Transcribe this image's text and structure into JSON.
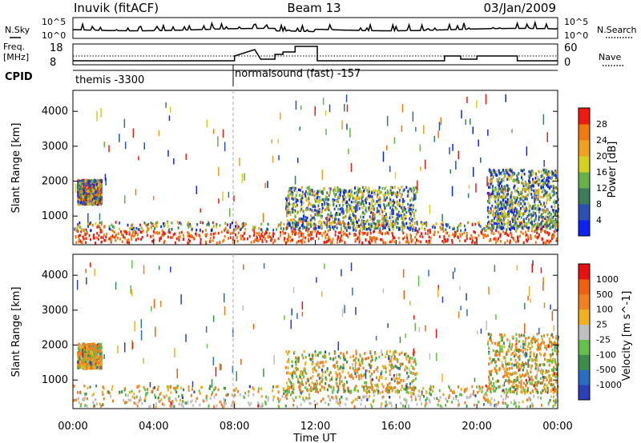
{
  "header": {
    "station": "Inuvik (fitACF)",
    "beam": "Beam 13",
    "date": "03/Jan/2009"
  },
  "top_panel": {
    "left_label": "N.Sky",
    "right_label": "N.Search",
    "left_ticks": [
      "10^5",
      "10^0"
    ],
    "right_ticks": [
      "10^5",
      "10^0"
    ]
  },
  "freq_panel": {
    "left_label_1": "Freq.",
    "left_label_2": "[MHz]",
    "left_ticks": [
      "18",
      "8"
    ],
    "right_ticks": [
      "60",
      "0"
    ],
    "right_label": "Nave",
    "cpid_label": "CPID",
    "cpid_modes": [
      "themis -3300",
      "normalsound (fast) -157"
    ]
  },
  "chart_data": [
    {
      "type": "heatmap",
      "panel": "power",
      "ylabel": "Slant Range [km]",
      "yticks": [
        1000,
        2000,
        3000,
        4000
      ],
      "ylim": [
        180,
        4600
      ],
      "colorbar_label": "Power [dB]",
      "colorbar_ticks": [
        "28",
        "24",
        "20",
        "16",
        "12",
        "8",
        "4"
      ],
      "colors": [
        "#0a23f0",
        "#2a4fb5",
        "#3a7d5a",
        "#66b24a",
        "#d6d020",
        "#f0a020",
        "#f07a10",
        "#f01a10"
      ],
      "echo_regions_hours_km": [
        {
          "t0": 0.0,
          "t1": 24.0,
          "r0": 200,
          "r1": 800,
          "level": "high"
        },
        {
          "t0": 0.2,
          "t1": 1.4,
          "r0": 1300,
          "r1": 2000,
          "level": "high"
        },
        {
          "t0": 10.5,
          "t1": 17.0,
          "r0": 600,
          "r1": 1800,
          "level": "mid"
        },
        {
          "t0": 20.5,
          "t1": 24.0,
          "r0": 600,
          "r1": 2300,
          "level": "mid"
        }
      ]
    },
    {
      "type": "heatmap",
      "panel": "velocity",
      "ylabel": "Slant Range [km]",
      "yticks": [
        1000,
        2000,
        3000,
        4000
      ],
      "ylim": [
        180,
        4600
      ],
      "xlabel": "Time UT",
      "xticks": [
        "00:00",
        "04:00",
        "08:00",
        "12:00",
        "16:00",
        "20:00",
        "00:00"
      ],
      "colorbar_label": "Velocity [m s^-1]",
      "colorbar_ticks": [
        "1000",
        "500",
        "100",
        "25",
        "-25",
        "-100",
        "-500",
        "-1000"
      ],
      "colors": [
        "#2d3fb8",
        "#2a6cc0",
        "#3a8e4a",
        "#64c04a",
        "#c0c0c0",
        "#f0b020",
        "#f08020",
        "#f06010",
        "#e81010"
      ]
    }
  ]
}
